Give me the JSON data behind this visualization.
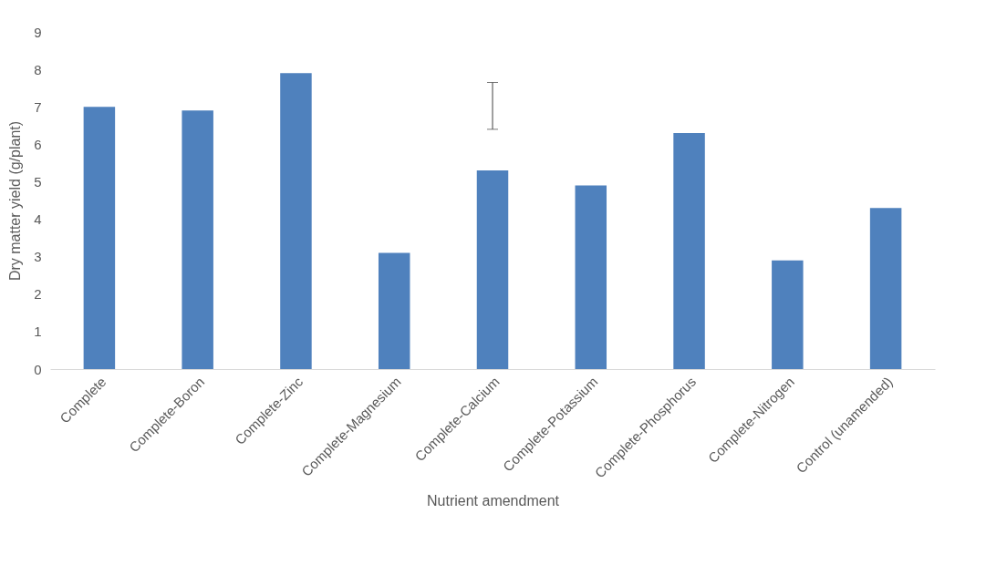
{
  "chart_data": {
    "type": "bar",
    "xlabel": "Nutrient amendment",
    "ylabel": "Dry matter yield (g/plant)",
    "categories": [
      "Complete",
      "Complete-Boron",
      "Complete-Zinc",
      "Complete-Magnesium",
      "Complete-Calcium",
      "Complete-Potassium",
      "Complete-Phosphorus",
      "Complete-Nitrogen",
      "Control (unamended)"
    ],
    "values": [
      7.0,
      6.9,
      7.9,
      3.1,
      5.3,
      4.9,
      6.3,
      2.9,
      4.3
    ],
    "errors": [
      null,
      null,
      null,
      null,
      [
        6.4,
        7.65
      ],
      null,
      null,
      null,
      null
    ],
    "color": "#4f81bd",
    "ylim": [
      0,
      9
    ],
    "yticks": [
      0,
      1,
      2,
      3,
      4,
      5,
      6,
      7,
      8,
      9
    ],
    "grid": false
  }
}
